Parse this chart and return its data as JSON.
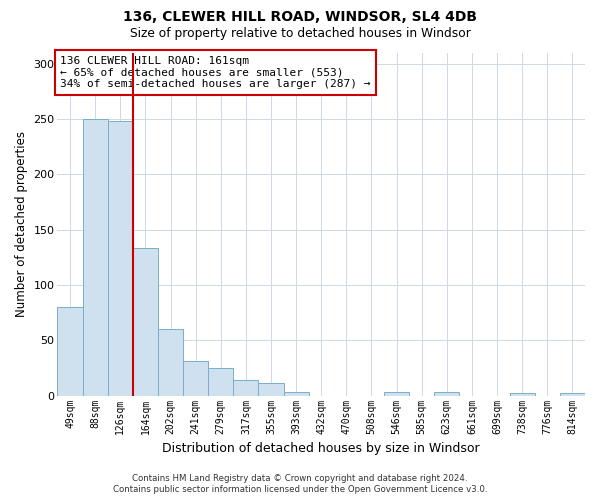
{
  "title1": "136, CLEWER HILL ROAD, WINDSOR, SL4 4DB",
  "title2": "Size of property relative to detached houses in Windsor",
  "xlabel": "Distribution of detached houses by size in Windsor",
  "ylabel": "Number of detached properties",
  "categories": [
    "49sqm",
    "88sqm",
    "126sqm",
    "164sqm",
    "202sqm",
    "241sqm",
    "279sqm",
    "317sqm",
    "355sqm",
    "393sqm",
    "432sqm",
    "470sqm",
    "508sqm",
    "546sqm",
    "585sqm",
    "623sqm",
    "661sqm",
    "699sqm",
    "738sqm",
    "776sqm",
    "814sqm"
  ],
  "values": [
    80,
    250,
    248,
    133,
    60,
    31,
    25,
    14,
    11,
    3,
    0,
    0,
    0,
    3,
    0,
    3,
    0,
    0,
    2,
    0,
    2
  ],
  "bar_color": "#cfe0ef",
  "bar_edge_color": "#7aaec8",
  "vline_after_index": 2,
  "vline_color": "#cc0000",
  "annotation_text": "136 CLEWER HILL ROAD: 161sqm\n← 65% of detached houses are smaller (553)\n34% of semi-detached houses are larger (287) →",
  "annotation_box_edge_color": "#cc0000",
  "ylim": [
    0,
    310
  ],
  "yticks": [
    0,
    50,
    100,
    150,
    200,
    250,
    300
  ],
  "footer_line1": "Contains HM Land Registry data © Crown copyright and database right 2024.",
  "footer_line2": "Contains public sector information licensed under the Open Government Licence v3.0.",
  "bg_color": "#ffffff",
  "grid_color": "#cdd9e8"
}
